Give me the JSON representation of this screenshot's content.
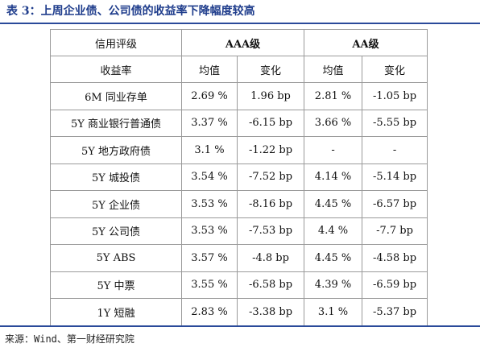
{
  "title": "表 3：上周企业债、公司债的收益率下降幅度较高",
  "table": {
    "header_row1": {
      "col0": "信用评级",
      "aaa": "AAA级",
      "aa": "AA级"
    },
    "header_row2": {
      "col0": "收益率",
      "aaa_mean": "均值",
      "aaa_change": "变化",
      "aa_mean": "均值",
      "aa_change": "变化"
    },
    "rows": [
      {
        "name": "6M 同业存单",
        "aaa_mean": "2.69 %",
        "aaa_change": "1.96 bp",
        "aa_mean": "2.81 %",
        "aa_change": "-1.05 bp"
      },
      {
        "name": "5Y 商业银行普通债",
        "aaa_mean": "3.37 %",
        "aaa_change": "-6.15 bp",
        "aa_mean": "3.66 %",
        "aa_change": "-5.55 bp"
      },
      {
        "name": "5Y 地方政府债",
        "aaa_mean": "3.1 %",
        "aaa_change": "-1.22 bp",
        "aa_mean": "-",
        "aa_change": "-"
      },
      {
        "name": "5Y 城投债",
        "aaa_mean": "3.54 %",
        "aaa_change": "-7.52 bp",
        "aa_mean": "4.14 %",
        "aa_change": "-5.14 bp"
      },
      {
        "name": "5Y 企业债",
        "aaa_mean": "3.53 %",
        "aaa_change": "-8.16 bp",
        "aa_mean": "4.45 %",
        "aa_change": "-6.57 bp"
      },
      {
        "name": "5Y 公司债",
        "aaa_mean": "3.53 %",
        "aaa_change": "-7.53 bp",
        "aa_mean": "4.4 %",
        "aa_change": "-7.7 bp"
      },
      {
        "name": "5Y ABS",
        "aaa_mean": "3.57 %",
        "aaa_change": "-4.8 bp",
        "aa_mean": "4.45 %",
        "aa_change": "-4.58 bp"
      },
      {
        "name": "5Y 中票",
        "aaa_mean": "3.55 %",
        "aaa_change": "-6.58 bp",
        "aa_mean": "4.39 %",
        "aa_change": "-6.59 bp"
      },
      {
        "name": "1Y 短融",
        "aaa_mean": "2.83 %",
        "aaa_change": "-3.38 bp",
        "aa_mean": "3.1 %",
        "aa_change": "-5.37 bp"
      }
    ]
  },
  "source": "来源：Wind、第一财经研究院",
  "colors": {
    "title": "#1f3d8c",
    "rule": "#2a4a9a",
    "grid": "#9a9a9a"
  }
}
